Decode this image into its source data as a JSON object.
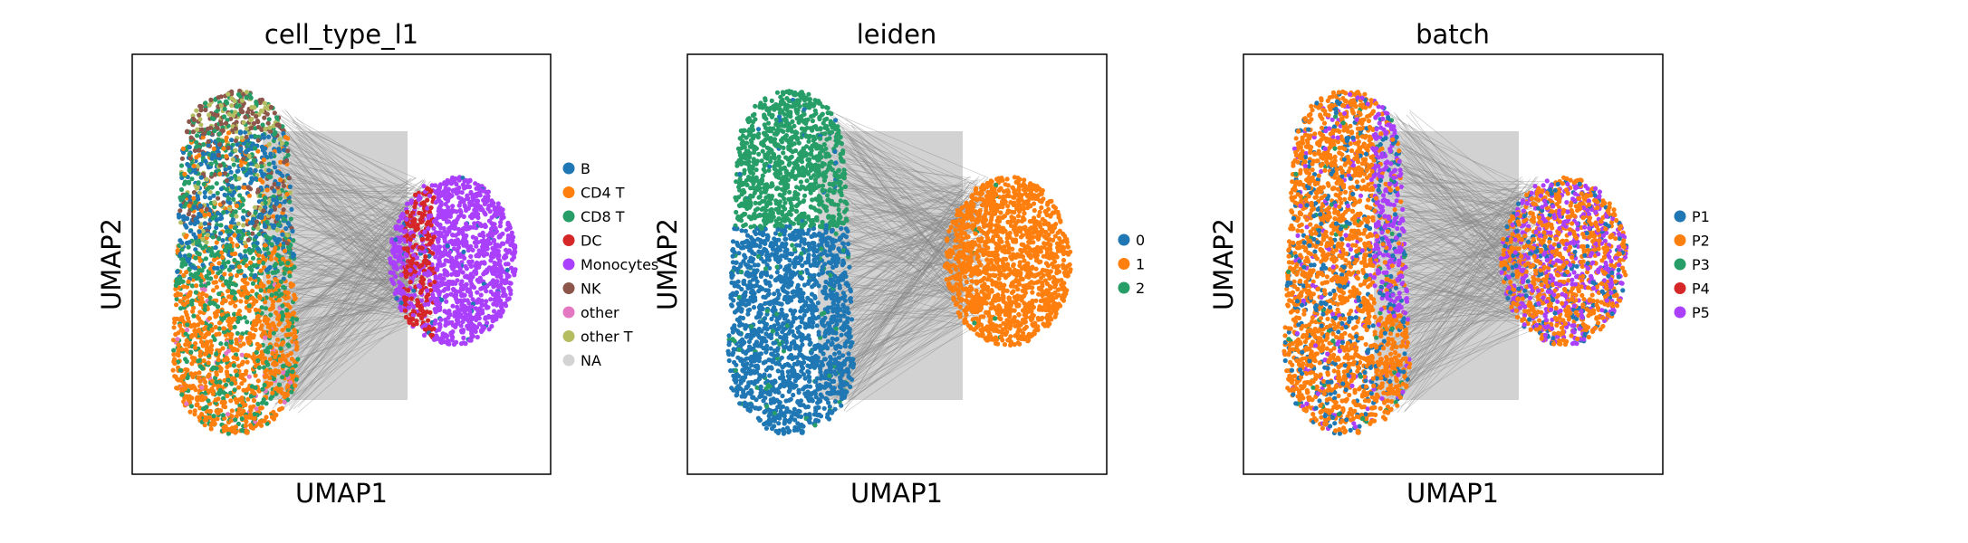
{
  "chart_data": [
    {
      "type": "scatter",
      "title": "cell_type_l1",
      "xlabel": "UMAP1",
      "ylabel": "UMAP2",
      "legend": "right",
      "categories": [
        "B",
        "CD4 T",
        "CD8 T",
        "DC",
        "Monocytes",
        "NK",
        "other",
        "other T",
        "NA"
      ],
      "colors": [
        "#1f77b4",
        "#ff7f0e",
        "#279e68",
        "#d62728",
        "#aa40fc",
        "#8c564b",
        "#e377c2",
        "#b5bd61",
        "#d3d3d3"
      ]
    },
    {
      "type": "scatter",
      "title": "leiden",
      "xlabel": "UMAP1",
      "ylabel": "UMAP2",
      "legend": "right",
      "categories": [
        "0",
        "1",
        "2"
      ],
      "colors": [
        "#1f77b4",
        "#ff7f0e",
        "#279e68"
      ]
    },
    {
      "type": "scatter",
      "title": "batch",
      "xlabel": "UMAP1",
      "ylabel": "UMAP2",
      "legend": "right",
      "categories": [
        "P1",
        "P2",
        "P3",
        "P4",
        "P5"
      ],
      "colors": [
        "#1f77b4",
        "#ff7f0e",
        "#279e68",
        "#d62728",
        "#aa40fc"
      ]
    }
  ]
}
